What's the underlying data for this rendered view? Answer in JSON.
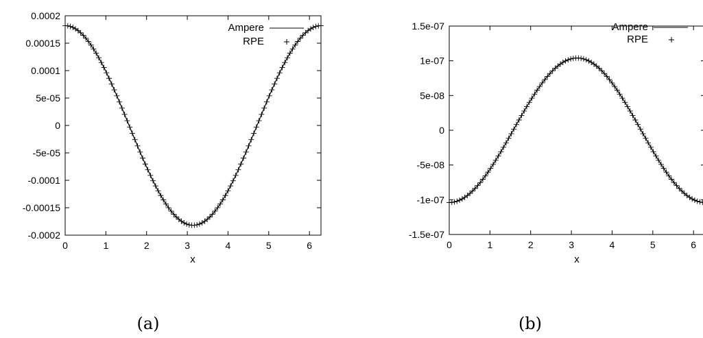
{
  "chart_data": [
    {
      "type": "line",
      "caption": "(a)",
      "xlabel": "x",
      "ylabel": "",
      "xlim": [
        0,
        6.2832
      ],
      "ylim": [
        -0.0002,
        0.0002
      ],
      "xticks": [
        "0",
        "1",
        "2",
        "3",
        "4",
        "5",
        "6"
      ],
      "yticks": [
        "0.0002",
        "0.00015",
        "0.0001",
        "5e-05",
        "0",
        "-5e-05",
        "-0.0001",
        "-0.00015",
        "-0.0002"
      ],
      "legend_position": "top-right",
      "series": [
        {
          "name": "Ampere",
          "style": "line",
          "function": "cos",
          "amplitude": 0.000182
        },
        {
          "name": "RPE",
          "style": "plus-markers",
          "function": "cos",
          "amplitude": 0.000182,
          "points": 100
        }
      ]
    },
    {
      "type": "line",
      "caption": "(b)",
      "xlabel": "x",
      "ylabel": "",
      "xlim": [
        0,
        6.2832
      ],
      "ylim": [
        -1.5e-07,
        1.5e-07
      ],
      "xticks": [
        "0",
        "1",
        "2",
        "3",
        "4",
        "5",
        "6"
      ],
      "yticks": [
        "1.5e-07",
        "1e-07",
        "5e-08",
        "0",
        "-5e-08",
        "-1e-07",
        "-1.5e-07"
      ],
      "legend_position": "top-right",
      "series": [
        {
          "name": "Ampere",
          "style": "line",
          "function": "-cos",
          "amplitude": 1.04e-07
        },
        {
          "name": "RPE",
          "style": "plus-markers",
          "function": "-cos",
          "amplitude": 1.04e-07,
          "points": 100
        }
      ]
    }
  ]
}
